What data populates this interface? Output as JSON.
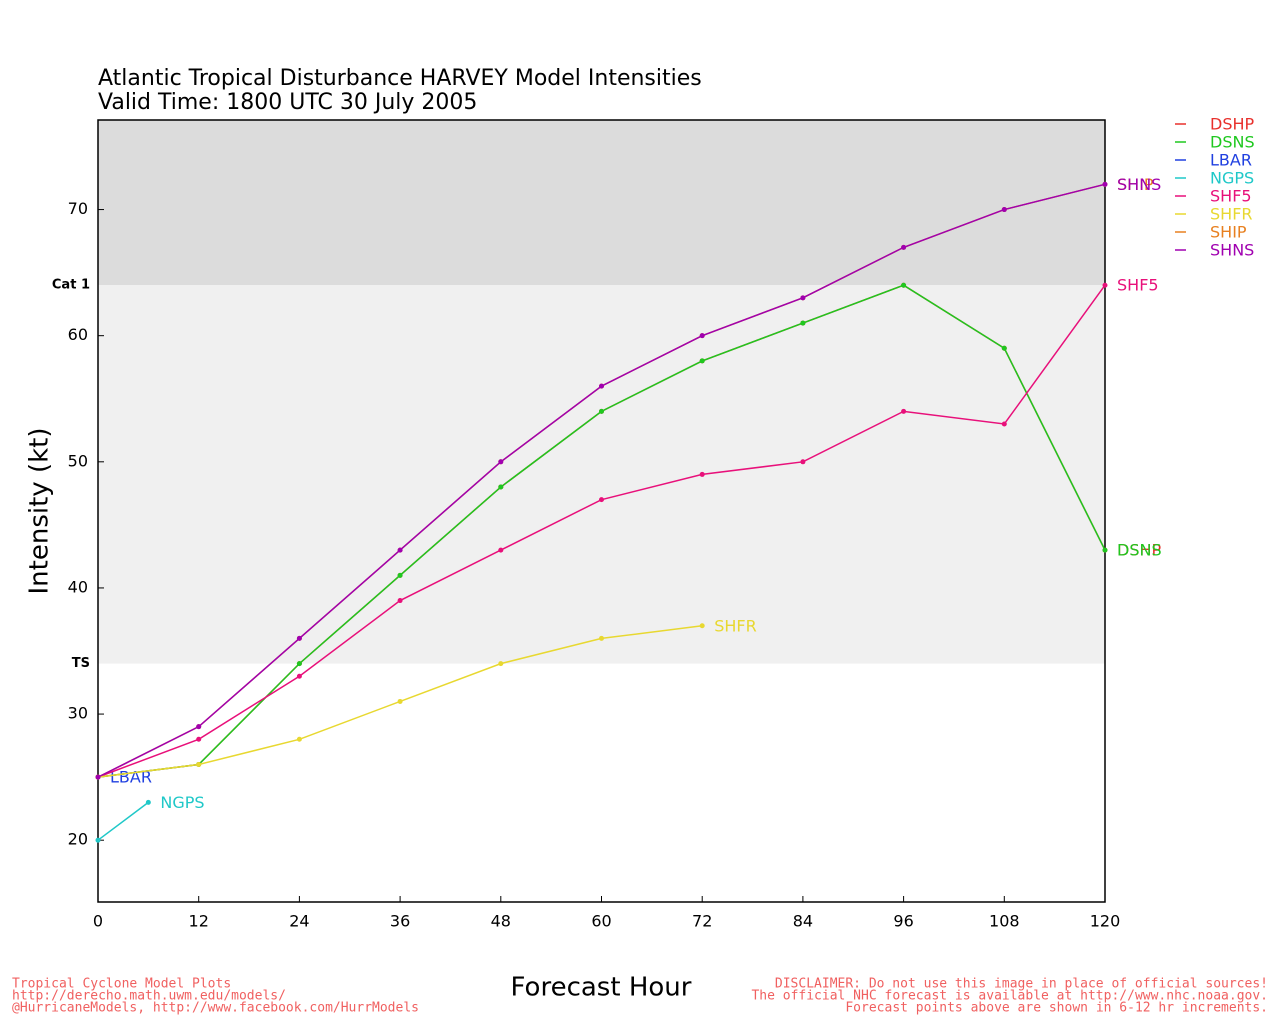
{
  "chart_data": {
    "type": "line",
    "title": "Atlantic Tropical Disturbance HARVEY Model Intensities",
    "subtitle": "Valid Time: 1800 UTC 30 July 2005",
    "x_label": "Forecast Hour",
    "y_label": "Intensity (kt)",
    "xlim": [
      0,
      120
    ],
    "xticks": [
      0,
      12,
      24,
      36,
      48,
      60,
      72,
      84,
      96,
      108,
      120
    ],
    "ylim": [
      15.1,
      77.1
    ],
    "yticks": [
      20,
      30,
      40,
      50,
      60,
      70
    ],
    "thresholds": [
      {
        "value": 34,
        "label": "TS"
      },
      {
        "value": 64,
        "label": "Cat 1"
      }
    ],
    "series": [
      {
        "name": "DSHP",
        "color": "#e8302c",
        "x": [
          0,
          12,
          24,
          36,
          48,
          60,
          72,
          84,
          96,
          108,
          120
        ],
        "values": [
          25,
          26,
          34,
          41,
          48,
          54,
          58,
          61,
          64,
          59,
          43
        ]
      },
      {
        "name": "DSNS",
        "color": "#1fc81f",
        "x": [
          0,
          12,
          24,
          36,
          48,
          60,
          72,
          84,
          96,
          108,
          120
        ],
        "values": [
          25,
          26,
          34,
          41,
          48,
          54,
          58,
          61,
          64,
          59,
          43
        ]
      },
      {
        "name": "LBAR",
        "color": "#2040e0",
        "x": [
          0
        ],
        "values": [
          25
        ]
      },
      {
        "name": "NGPS",
        "color": "#1fc8c8",
        "x": [
          0,
          6
        ],
        "values": [
          20,
          23
        ]
      },
      {
        "name": "SHF5",
        "color": "#e8107a",
        "x": [
          0,
          12,
          24,
          36,
          48,
          60,
          72,
          84,
          96,
          108,
          120
        ],
        "values": [
          25,
          28,
          33,
          39,
          43,
          47,
          49,
          50,
          54,
          53,
          64
        ]
      },
      {
        "name": "SHFR",
        "color": "#e8d830",
        "x": [
          0,
          12,
          24,
          36,
          48,
          60,
          72
        ],
        "values": [
          25,
          26,
          28,
          31,
          34,
          36,
          37
        ]
      },
      {
        "name": "SHIP",
        "color": "#e88020",
        "x": [
          0,
          12,
          24,
          36,
          48,
          60,
          72,
          84,
          96,
          108,
          120
        ],
        "values": [
          25,
          29,
          36,
          43,
          50,
          56,
          60,
          63,
          67,
          70,
          72
        ]
      },
      {
        "name": "SHNS",
        "color": "#a000b0",
        "x": [
          0,
          12,
          24,
          36,
          48,
          60,
          72,
          84,
          96,
          108,
          120
        ],
        "values": [
          25,
          29,
          36,
          43,
          50,
          56,
          60,
          63,
          67,
          70,
          72
        ]
      }
    ],
    "footer_left": [
      "Tropical Cyclone Model Plots",
      "http://derecho.math.uwm.edu/models/",
      "@HurricaneModels, http://www.facebook.com/HurrModels"
    ],
    "footer_right": [
      "DISCLAIMER: Do not use this image in place of official sources!",
      "The official NHC forecast is available at http://www.nhc.noaa.gov.",
      "Forecast points above are shown in 6-12 hr increments."
    ]
  }
}
